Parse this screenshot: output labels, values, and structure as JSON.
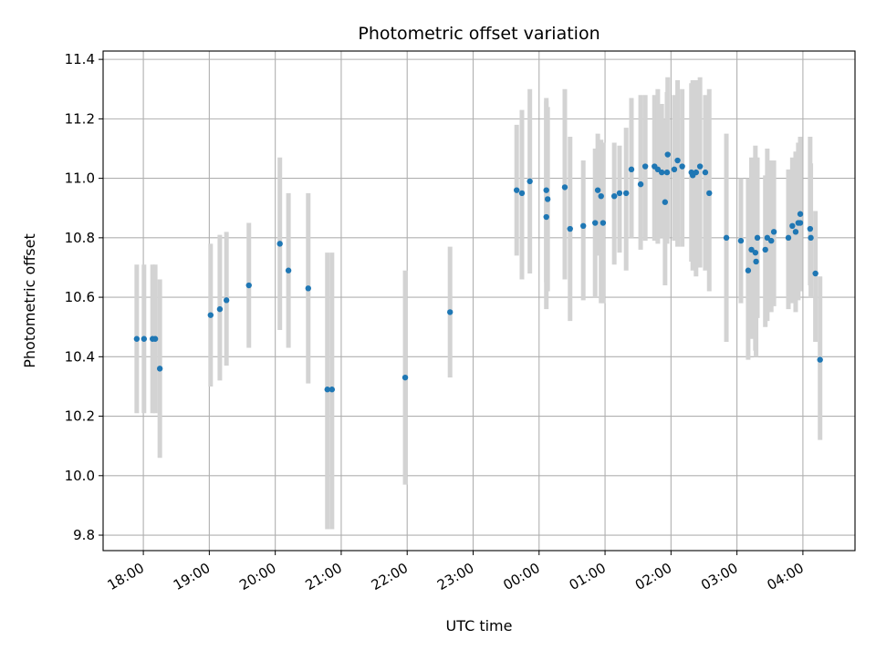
{
  "chart_data": {
    "type": "scatter",
    "title": "Photometric offset variation",
    "xlabel": "UTC time",
    "ylabel": "Photometric offset",
    "x_units": "hours since 00:00 of first day (24+ = next day)",
    "xlim": [
      17.39,
      28.79
    ],
    "ylim": [
      9.748,
      11.428
    ],
    "grid": true,
    "xticks": [
      {
        "value": 18,
        "label": "18:00"
      },
      {
        "value": 19,
        "label": "19:00"
      },
      {
        "value": 20,
        "label": "20:00"
      },
      {
        "value": 21,
        "label": "21:00"
      },
      {
        "value": 22,
        "label": "22:00"
      },
      {
        "value": 23,
        "label": "23:00"
      },
      {
        "value": 24,
        "label": "00:00"
      },
      {
        "value": 25,
        "label": "01:00"
      },
      {
        "value": 26,
        "label": "02:00"
      },
      {
        "value": 27,
        "label": "03:00"
      },
      {
        "value": 28,
        "label": "04:00"
      }
    ],
    "yticks": [
      {
        "value": 9.8,
        "label": "9.8"
      },
      {
        "value": 10.0,
        "label": "10.0"
      },
      {
        "value": 10.2,
        "label": "10.2"
      },
      {
        "value": 10.4,
        "label": "10.4"
      },
      {
        "value": 10.6,
        "label": "10.6"
      },
      {
        "value": 10.8,
        "label": "10.8"
      },
      {
        "value": 11.0,
        "label": "11.0"
      },
      {
        "value": 11.2,
        "label": "11.2"
      },
      {
        "value": 11.4,
        "label": "11.4"
      }
    ],
    "colors": {
      "point": "#1f77b4",
      "errorbar": "#d3d3d3",
      "grid": "#b0b0b0"
    },
    "points": [
      [
        17.9,
        10.46,
        10.21,
        10.71
      ],
      [
        18.01,
        10.46,
        10.21,
        10.71
      ],
      [
        18.14,
        10.46,
        10.21,
        10.71
      ],
      [
        18.18,
        10.46,
        10.21,
        10.71
      ],
      [
        18.25,
        10.36,
        10.06,
        10.66
      ],
      [
        19.02,
        10.54,
        10.3,
        10.78
      ],
      [
        19.16,
        10.56,
        10.32,
        10.81
      ],
      [
        19.26,
        10.59,
        10.37,
        10.82
      ],
      [
        19.6,
        10.64,
        10.43,
        10.85
      ],
      [
        20.07,
        10.78,
        10.49,
        11.07
      ],
      [
        20.2,
        10.69,
        10.43,
        10.95
      ],
      [
        20.5,
        10.63,
        10.31,
        10.95
      ],
      [
        20.79,
        10.29,
        9.82,
        10.75
      ],
      [
        20.86,
        10.29,
        9.82,
        10.75
      ],
      [
        21.97,
        10.33,
        9.97,
        10.69
      ],
      [
        22.65,
        10.55,
        10.33,
        10.77
      ],
      [
        23.66,
        10.96,
        10.74,
        11.18
      ],
      [
        23.74,
        10.95,
        10.66,
        11.23
      ],
      [
        23.86,
        10.99,
        10.68,
        11.3
      ],
      [
        24.11,
        10.87,
        10.56,
        11.27
      ],
      [
        24.11,
        10.96,
        10.65,
        11.26
      ],
      [
        24.13,
        10.93,
        10.62,
        11.24
      ],
      [
        24.39,
        10.97,
        10.66,
        11.3
      ],
      [
        24.47,
        10.83,
        10.52,
        11.14
      ],
      [
        24.67,
        10.84,
        10.59,
        11.06
      ],
      [
        24.85,
        10.85,
        10.6,
        11.1
      ],
      [
        24.89,
        10.96,
        10.74,
        11.15
      ],
      [
        24.94,
        10.94,
        10.58,
        11.13
      ],
      [
        24.97,
        10.85,
        10.58,
        11.12
      ],
      [
        25.14,
        10.94,
        10.71,
        11.12
      ],
      [
        25.22,
        10.95,
        10.75,
        11.11
      ],
      [
        25.32,
        10.95,
        10.69,
        11.17
      ],
      [
        25.4,
        11.03,
        10.8,
        11.27
      ],
      [
        25.54,
        10.98,
        10.76,
        11.28
      ],
      [
        25.61,
        11.04,
        10.79,
        11.28
      ],
      [
        25.75,
        11.04,
        10.79,
        11.28
      ],
      [
        25.8,
        11.03,
        10.78,
        11.3
      ],
      [
        25.86,
        11.02,
        10.8,
        11.25
      ],
      [
        25.91,
        10.92,
        10.64,
        11.2
      ],
      [
        25.95,
        11.08,
        10.8,
        11.34
      ],
      [
        25.94,
        11.02,
        10.78,
        11.29
      ],
      [
        26.05,
        11.03,
        10.79,
        11.28
      ],
      [
        26.1,
        11.06,
        10.77,
        11.33
      ],
      [
        26.17,
        11.04,
        10.77,
        11.3
      ],
      [
        26.31,
        11.02,
        10.72,
        11.32
      ],
      [
        26.33,
        11.01,
        10.69,
        11.33
      ],
      [
        26.38,
        11.02,
        10.67,
        11.33
      ],
      [
        26.44,
        11.04,
        10.7,
        11.34
      ],
      [
        26.52,
        11.02,
        10.69,
        11.28
      ],
      [
        26.58,
        10.95,
        10.62,
        11.3
      ],
      [
        26.84,
        10.8,
        10.45,
        11.15
      ],
      [
        27.06,
        10.79,
        10.58,
        11.0
      ],
      [
        27.17,
        10.69,
        10.39,
        11.0
      ],
      [
        27.22,
        10.76,
        10.46,
        11.07
      ],
      [
        27.28,
        10.75,
        10.42,
        11.11
      ],
      [
        27.29,
        10.72,
        10.4,
        11.07
      ],
      [
        27.31,
        10.8,
        10.53,
        11.07
      ],
      [
        27.43,
        10.76,
        10.5,
        11.01
      ],
      [
        27.46,
        10.8,
        10.52,
        11.1
      ],
      [
        27.52,
        10.79,
        10.55,
        11.06
      ],
      [
        27.56,
        10.82,
        10.57,
        11.06
      ],
      [
        27.78,
        10.8,
        10.56,
        11.03
      ],
      [
        27.84,
        10.84,
        10.58,
        11.07
      ],
      [
        27.89,
        10.82,
        10.55,
        11.09
      ],
      [
        27.93,
        10.85,
        10.59,
        11.12
      ],
      [
        27.96,
        10.85,
        10.62,
        11.11
      ],
      [
        27.96,
        10.88,
        10.63,
        11.14
      ],
      [
        28.11,
        10.83,
        10.64,
        11.14
      ],
      [
        28.12,
        10.8,
        10.6,
        11.05
      ],
      [
        28.19,
        10.68,
        10.45,
        10.89
      ],
      [
        28.26,
        10.39,
        10.12,
        10.67
      ]
    ],
    "points_format": [
      "time_hours",
      "offset",
      "err_low",
      "err_high"
    ]
  }
}
